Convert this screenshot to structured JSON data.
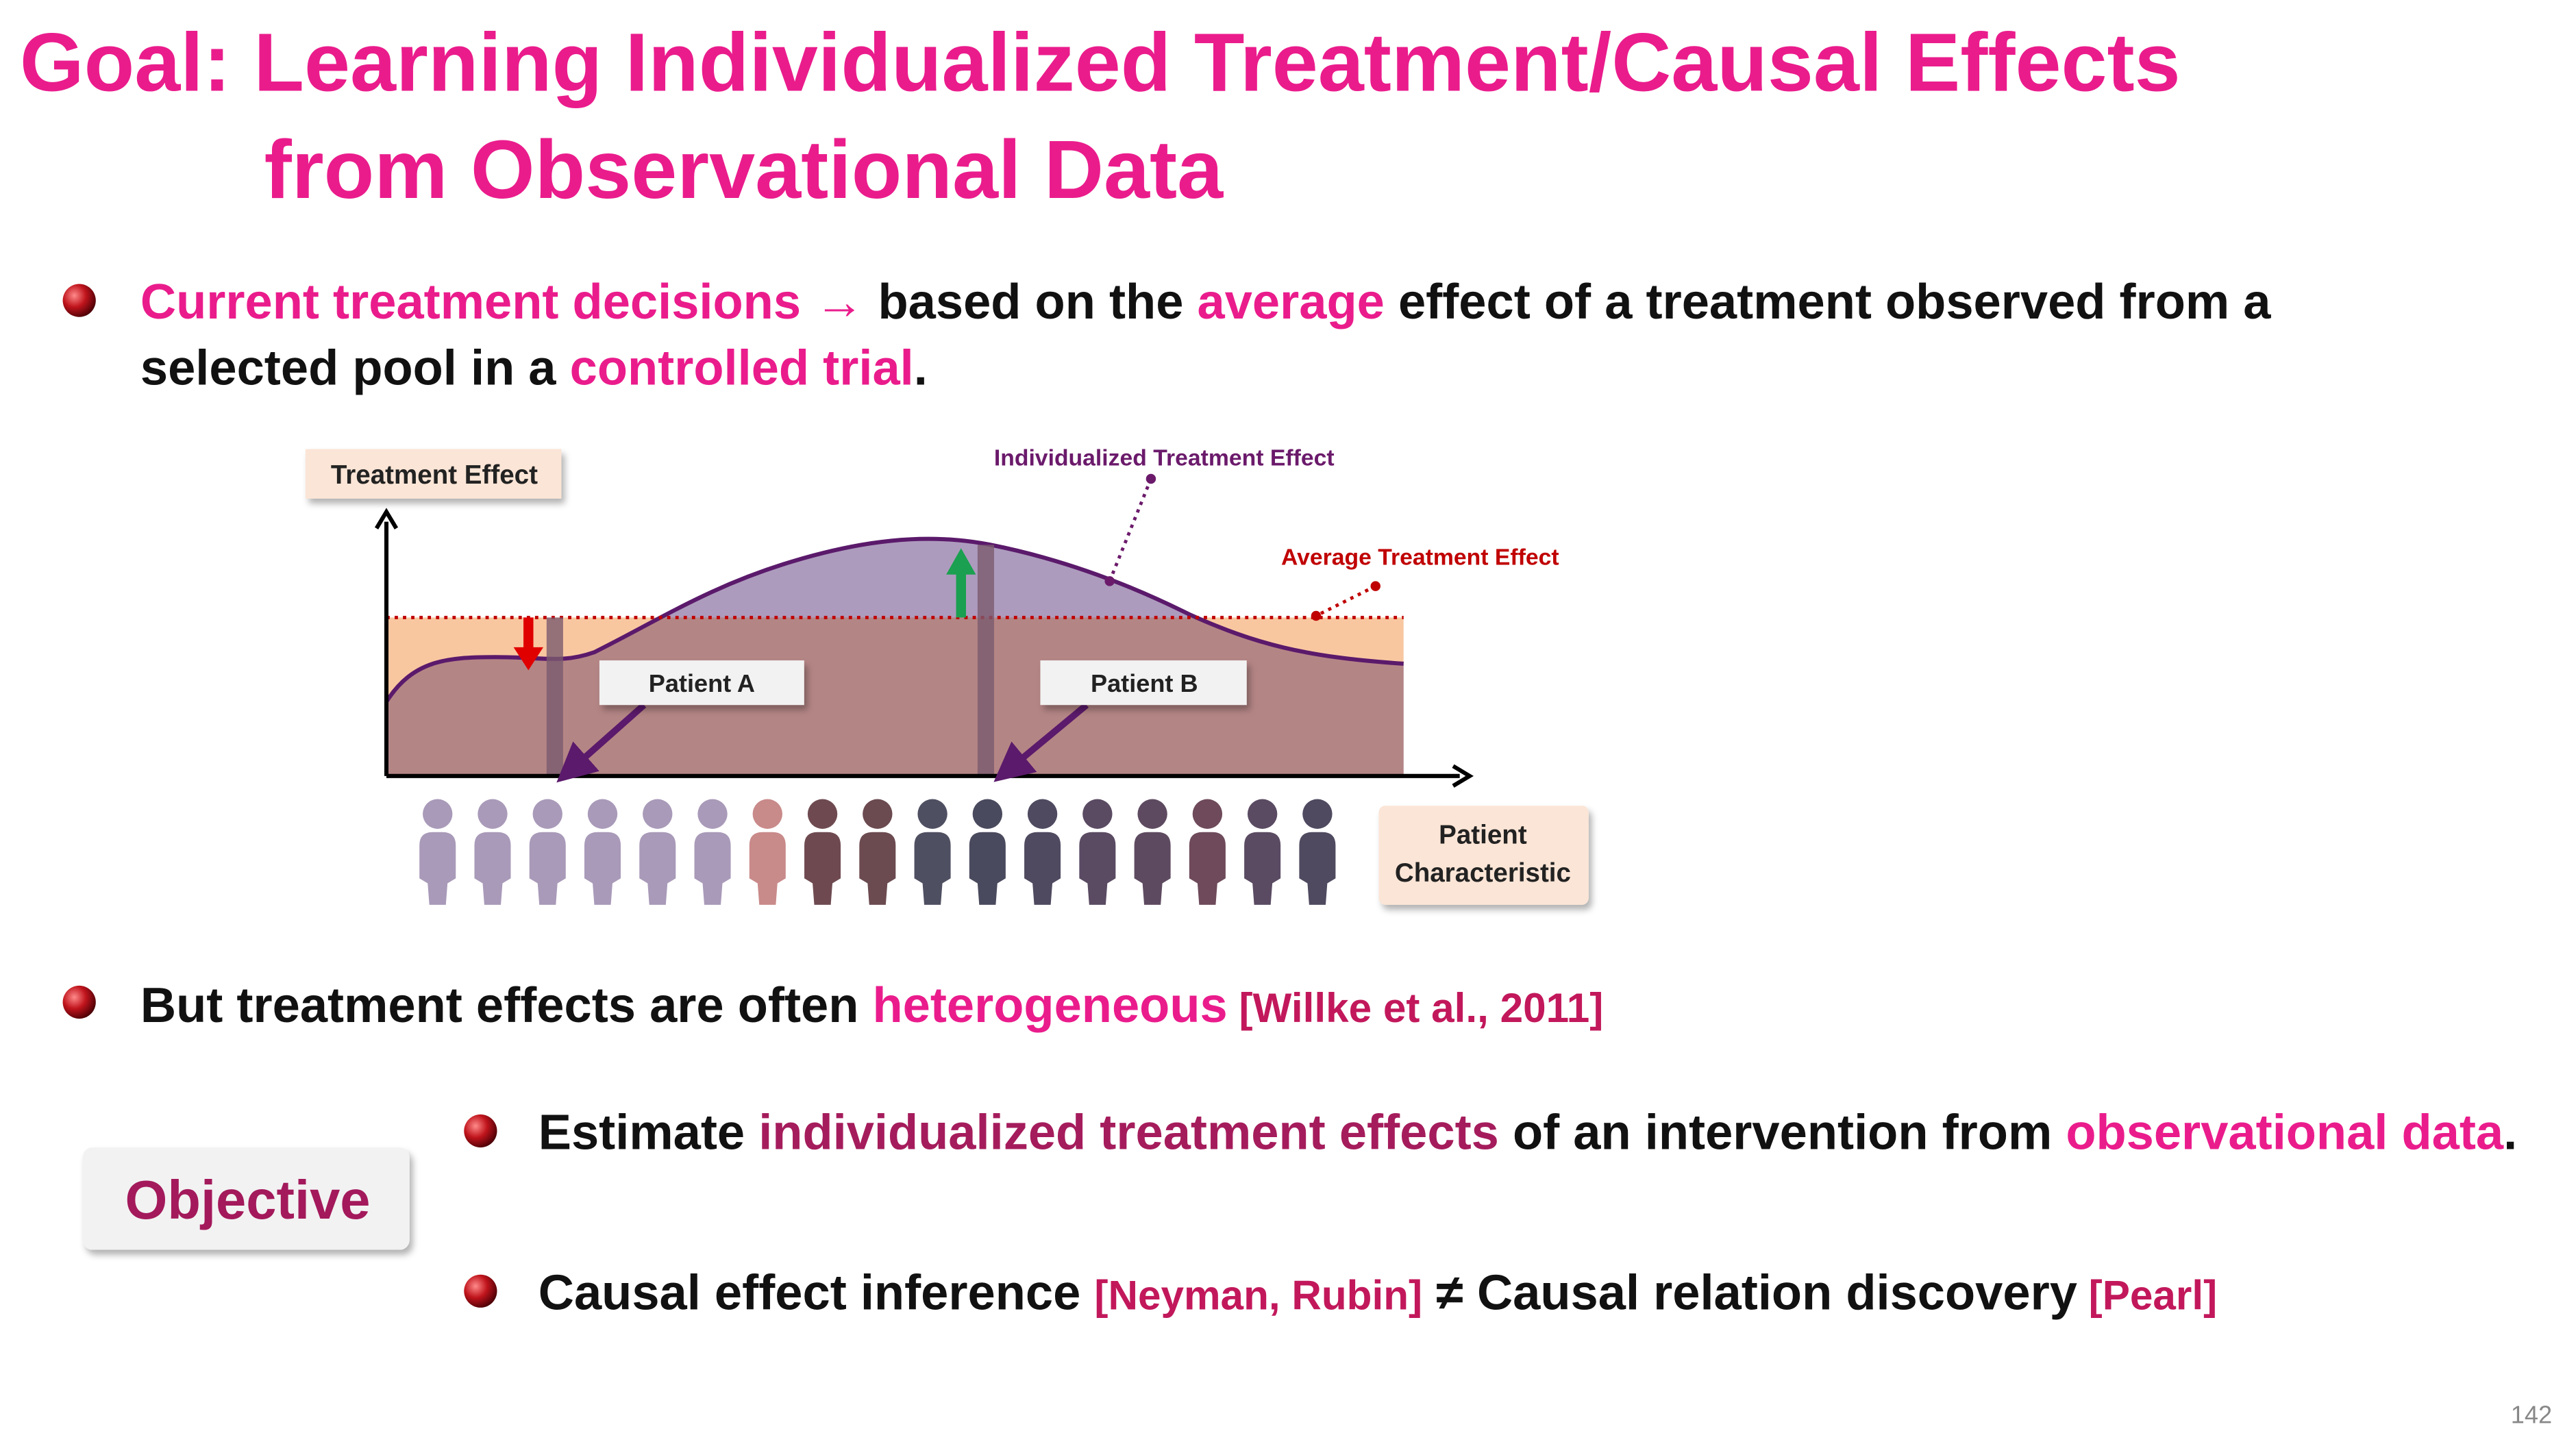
{
  "title": [
    "Goal: Learning Individualized Treatment/Causal Effects",
    "from Observational Data"
  ],
  "bullets": [
    {
      "segments": [
        {
          "text": "Current treatment decisions → ",
          "color": "#ea1c8c"
        },
        {
          "text": "based on the "
        },
        {
          "text": "average",
          "color": "#ea1c8c"
        },
        {
          "text": " effect of a treatment observed from a"
        }
      ],
      "continuation": [
        {
          "text": "selected pool in a "
        },
        {
          "text": "controlled trial",
          "color": "#ea1c8c"
        },
        {
          "text": "."
        }
      ]
    },
    {
      "segments": [
        {
          "text": "But treatment effects are often "
        },
        {
          "text": "heterogeneous",
          "color": "#ea1c8c"
        },
        {
          "text": " [Willke et al., 2011]",
          "color": "#c2185b",
          "size": "small"
        }
      ]
    }
  ],
  "diagram": {
    "y_axis_label": "Treatment Effect",
    "individualized_label": "Individualized Treatment Effect",
    "average_label": "Average Treatment Effect",
    "patient_a": "Patient A",
    "patient_b": "Patient B",
    "x_axis_label": [
      "Patient",
      "Characteristic"
    ]
  },
  "objective": {
    "label": "Objective",
    "bullets": [
      {
        "segments": [
          {
            "text": "Estimate "
          },
          {
            "text": "individualized treatment effects",
            "color": "#a51c5c"
          },
          {
            "text": " of an intervention from "
          },
          {
            "text": "observational data",
            "color": "#ea1c8c"
          },
          {
            "text": "."
          }
        ]
      },
      {
        "segments": [
          {
            "text": "Causal effect inference "
          },
          {
            "text": "[Neyman, Rubin]",
            "color": "#c2185b",
            "size": "small"
          },
          {
            "text": " ≠ "
          },
          {
            "text": "Causal relation discovery"
          },
          {
            "text": " [Pearl]",
            "color": "#c2185b",
            "size": "small"
          }
        ]
      }
    ]
  },
  "page_number": 142
}
